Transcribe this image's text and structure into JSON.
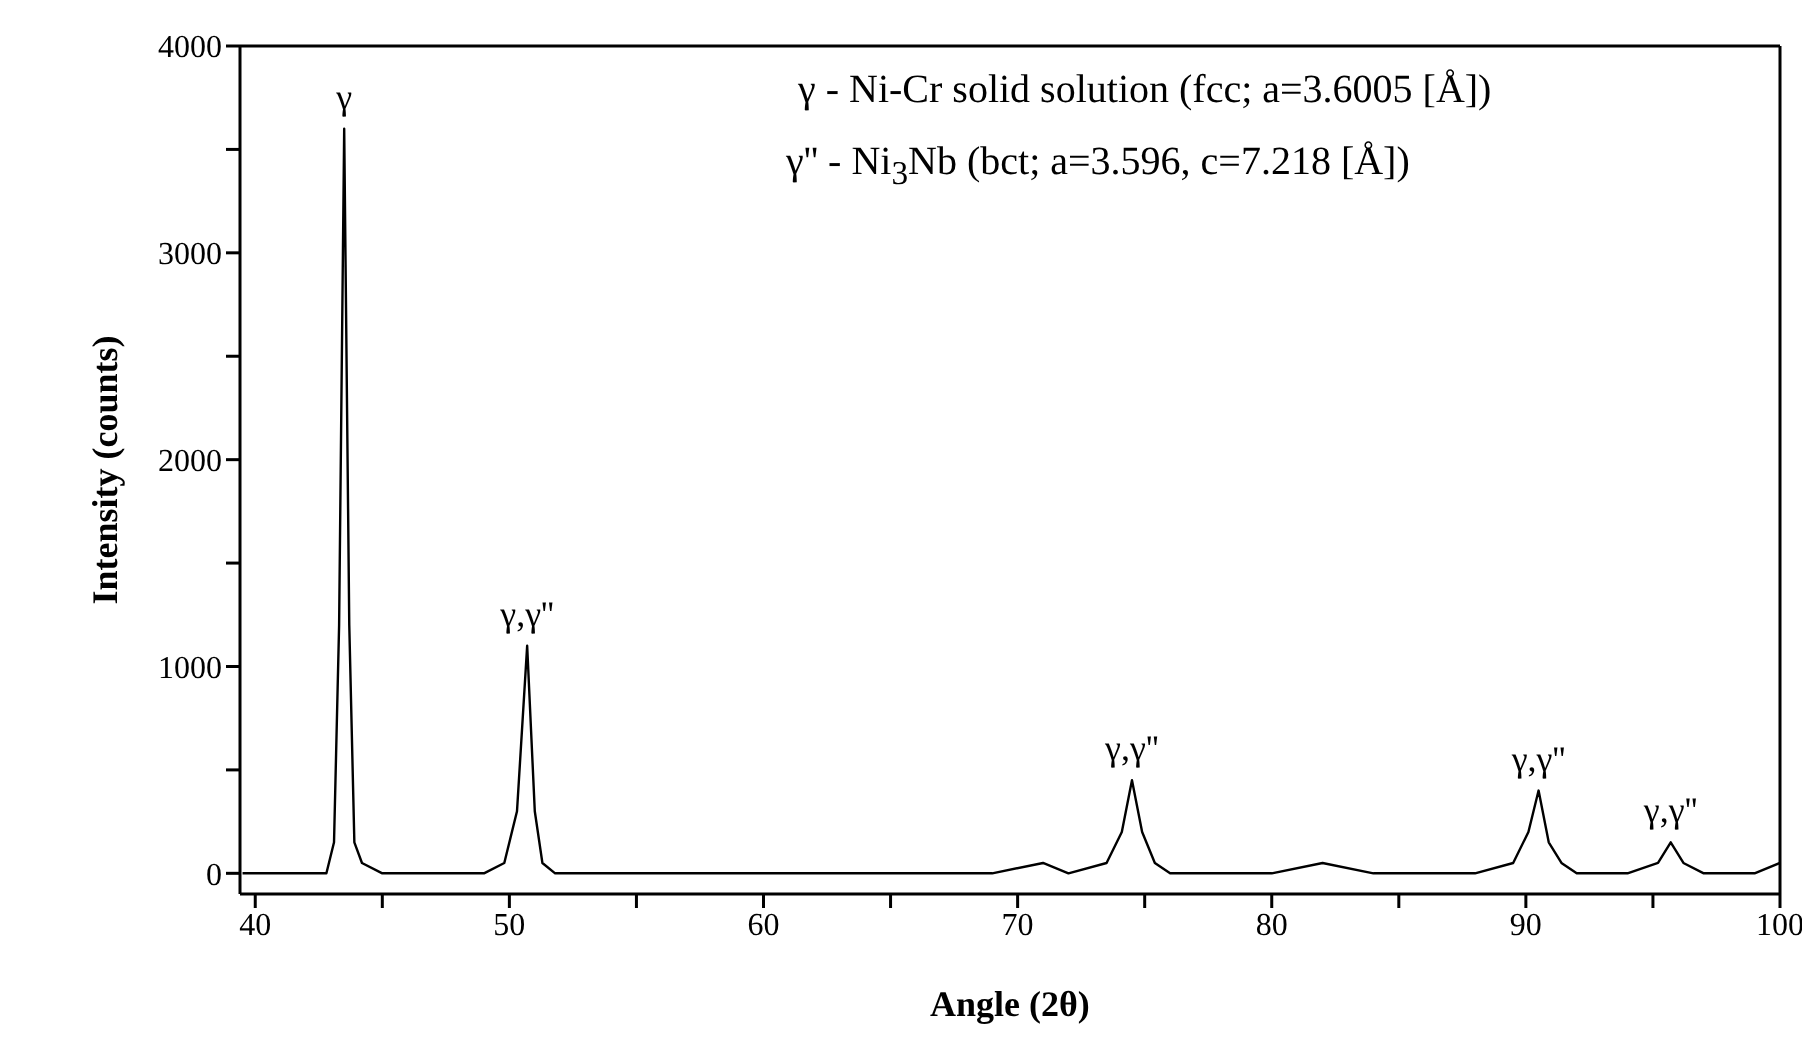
{
  "chart_data": {
    "type": "line",
    "xlabel": "Angle (2θ)",
    "ylabel": "Intensity (counts)",
    "xlim": [
      39.4,
      100
    ],
    "ylim": [
      -100,
      4000
    ],
    "xticks": [
      40,
      {
        "value": 45,
        "label": null
      },
      50,
      {
        "value": 55,
        "label": null
      },
      60,
      {
        "value": 65,
        "label": null
      },
      70,
      {
        "value": 75,
        "label": null
      },
      80,
      {
        "value": 85,
        "label": null
      },
      90,
      {
        "value": 95,
        "label": null
      },
      100
    ],
    "yticks": [
      0,
      {
        "value": 500,
        "label": null
      },
      1000,
      {
        "value": 1500,
        "label": null
      },
      2000,
      {
        "value": 2500,
        "label": null
      },
      3000,
      {
        "value": 3500,
        "label": null
      },
      4000
    ],
    "marker": "none",
    "line_style": "solid",
    "x": [
      39.5,
      40,
      41,
      42,
      42.8,
      43.1,
      43.3,
      43.5,
      43.7,
      43.9,
      44.2,
      45,
      46,
      47,
      48,
      49,
      49.8,
      50.3,
      50.7,
      51.0,
      51.3,
      51.8,
      53,
      55,
      57,
      59,
      61,
      63,
      65,
      67,
      69,
      71,
      72,
      73.5,
      74.1,
      74.5,
      74.9,
      75.4,
      76,
      78,
      80,
      82,
      84,
      86,
      88,
      89.5,
      90.1,
      90.5,
      90.9,
      91.4,
      92,
      94,
      95.2,
      95.7,
      96.2,
      97,
      98,
      99,
      100
    ],
    "series": [
      {
        "color": "#000000",
        "values": [
          0,
          0,
          0,
          0,
          0,
          150,
          1200,
          3600,
          1200,
          150,
          50,
          0,
          0,
          0,
          0,
          0,
          50,
          300,
          1100,
          300,
          50,
          0,
          0,
          0,
          0,
          0,
          0,
          0,
          0,
          0,
          0,
          50,
          0,
          50,
          200,
          450,
          200,
          50,
          0,
          0,
          0,
          50,
          0,
          0,
          0,
          50,
          200,
          400,
          150,
          50,
          0,
          0,
          50,
          150,
          50,
          0,
          0,
          0,
          50
        ]
      }
    ],
    "annotations": [
      {
        "text": "γ",
        "x": 43.5,
        "y": 3600
      },
      {
        "text": "γ,γ''",
        "x": 50.7,
        "y": 1100
      },
      {
        "text": "γ,γ''",
        "x": 74.5,
        "y": 450
      },
      {
        "text": "γ,γ''",
        "x": 90.5,
        "y": 400
      },
      {
        "text": "γ,γ''",
        "x": 95.7,
        "y": 150
      },
      "γ - Ni-Cr solid solution (fcc; a=3.6005 [Å])",
      "γ'' - Ni$_{3}$Nb (bct; a=3.596, c=7.218 [Å])"
    ]
  }
}
